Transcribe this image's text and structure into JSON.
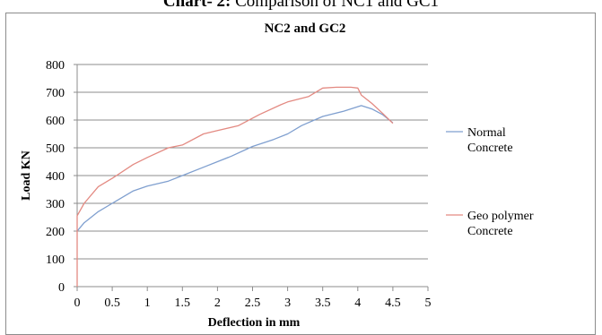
{
  "caption": {
    "bold": "Chart- 2:",
    "text": " Comparison of NC1 and GC1"
  },
  "chart_data": {
    "type": "line",
    "title": "NC2 and GC2",
    "xlabel": "Deflection in mm",
    "ylabel": "Load KN",
    "xlim": [
      0,
      5
    ],
    "ylim": [
      0,
      800
    ],
    "xticks": [
      0,
      0.5,
      1,
      1.5,
      2,
      2.5,
      3,
      3.5,
      4,
      4.5,
      5
    ],
    "xtick_labels": [
      "0",
      "0.5",
      "1",
      "1.5",
      "2",
      "2.5",
      "3",
      "3.5",
      "4",
      "4.5",
      "5"
    ],
    "yticks": [
      0,
      100,
      200,
      300,
      400,
      500,
      600,
      700,
      800
    ],
    "ytick_labels": [
      "0",
      "100",
      "200",
      "300",
      "400",
      "500",
      "600",
      "700",
      "800"
    ],
    "grid": "horizontal",
    "legend_position": "right",
    "series": [
      {
        "name": "Normal Concrete",
        "legend_lines": [
          "Normal",
          "Concrete"
        ],
        "color": "#7f9fcf",
        "x": [
          0,
          0.1,
          0.3,
          0.5,
          0.8,
          1.0,
          1.3,
          1.5,
          1.8,
          2.0,
          2.2,
          2.5,
          2.8,
          3.0,
          3.2,
          3.5,
          3.8,
          4.0,
          4.05,
          4.2,
          4.35,
          4.5
        ],
        "y": [
          200,
          230,
          270,
          300,
          345,
          362,
          380,
          400,
          430,
          450,
          470,
          505,
          530,
          550,
          580,
          613,
          632,
          648,
          652,
          640,
          620,
          590
        ]
      },
      {
        "name": "Geo polymer Concrete",
        "legend_lines": [
          "Geo polymer",
          "Concrete"
        ],
        "color": "#e38a82",
        "x": [
          0,
          0,
          0.1,
          0.3,
          0.5,
          0.8,
          1.0,
          1.3,
          1.5,
          1.8,
          2.0,
          2.3,
          2.6,
          2.9,
          3.0,
          3.3,
          3.5,
          3.7,
          3.9,
          4.0,
          4.05,
          4.2,
          4.35,
          4.5
        ],
        "y": [
          0,
          255,
          300,
          360,
          390,
          440,
          465,
          500,
          510,
          550,
          562,
          580,
          620,
          655,
          665,
          685,
          715,
          718,
          718,
          715,
          690,
          660,
          625,
          588
        ]
      }
    ]
  }
}
